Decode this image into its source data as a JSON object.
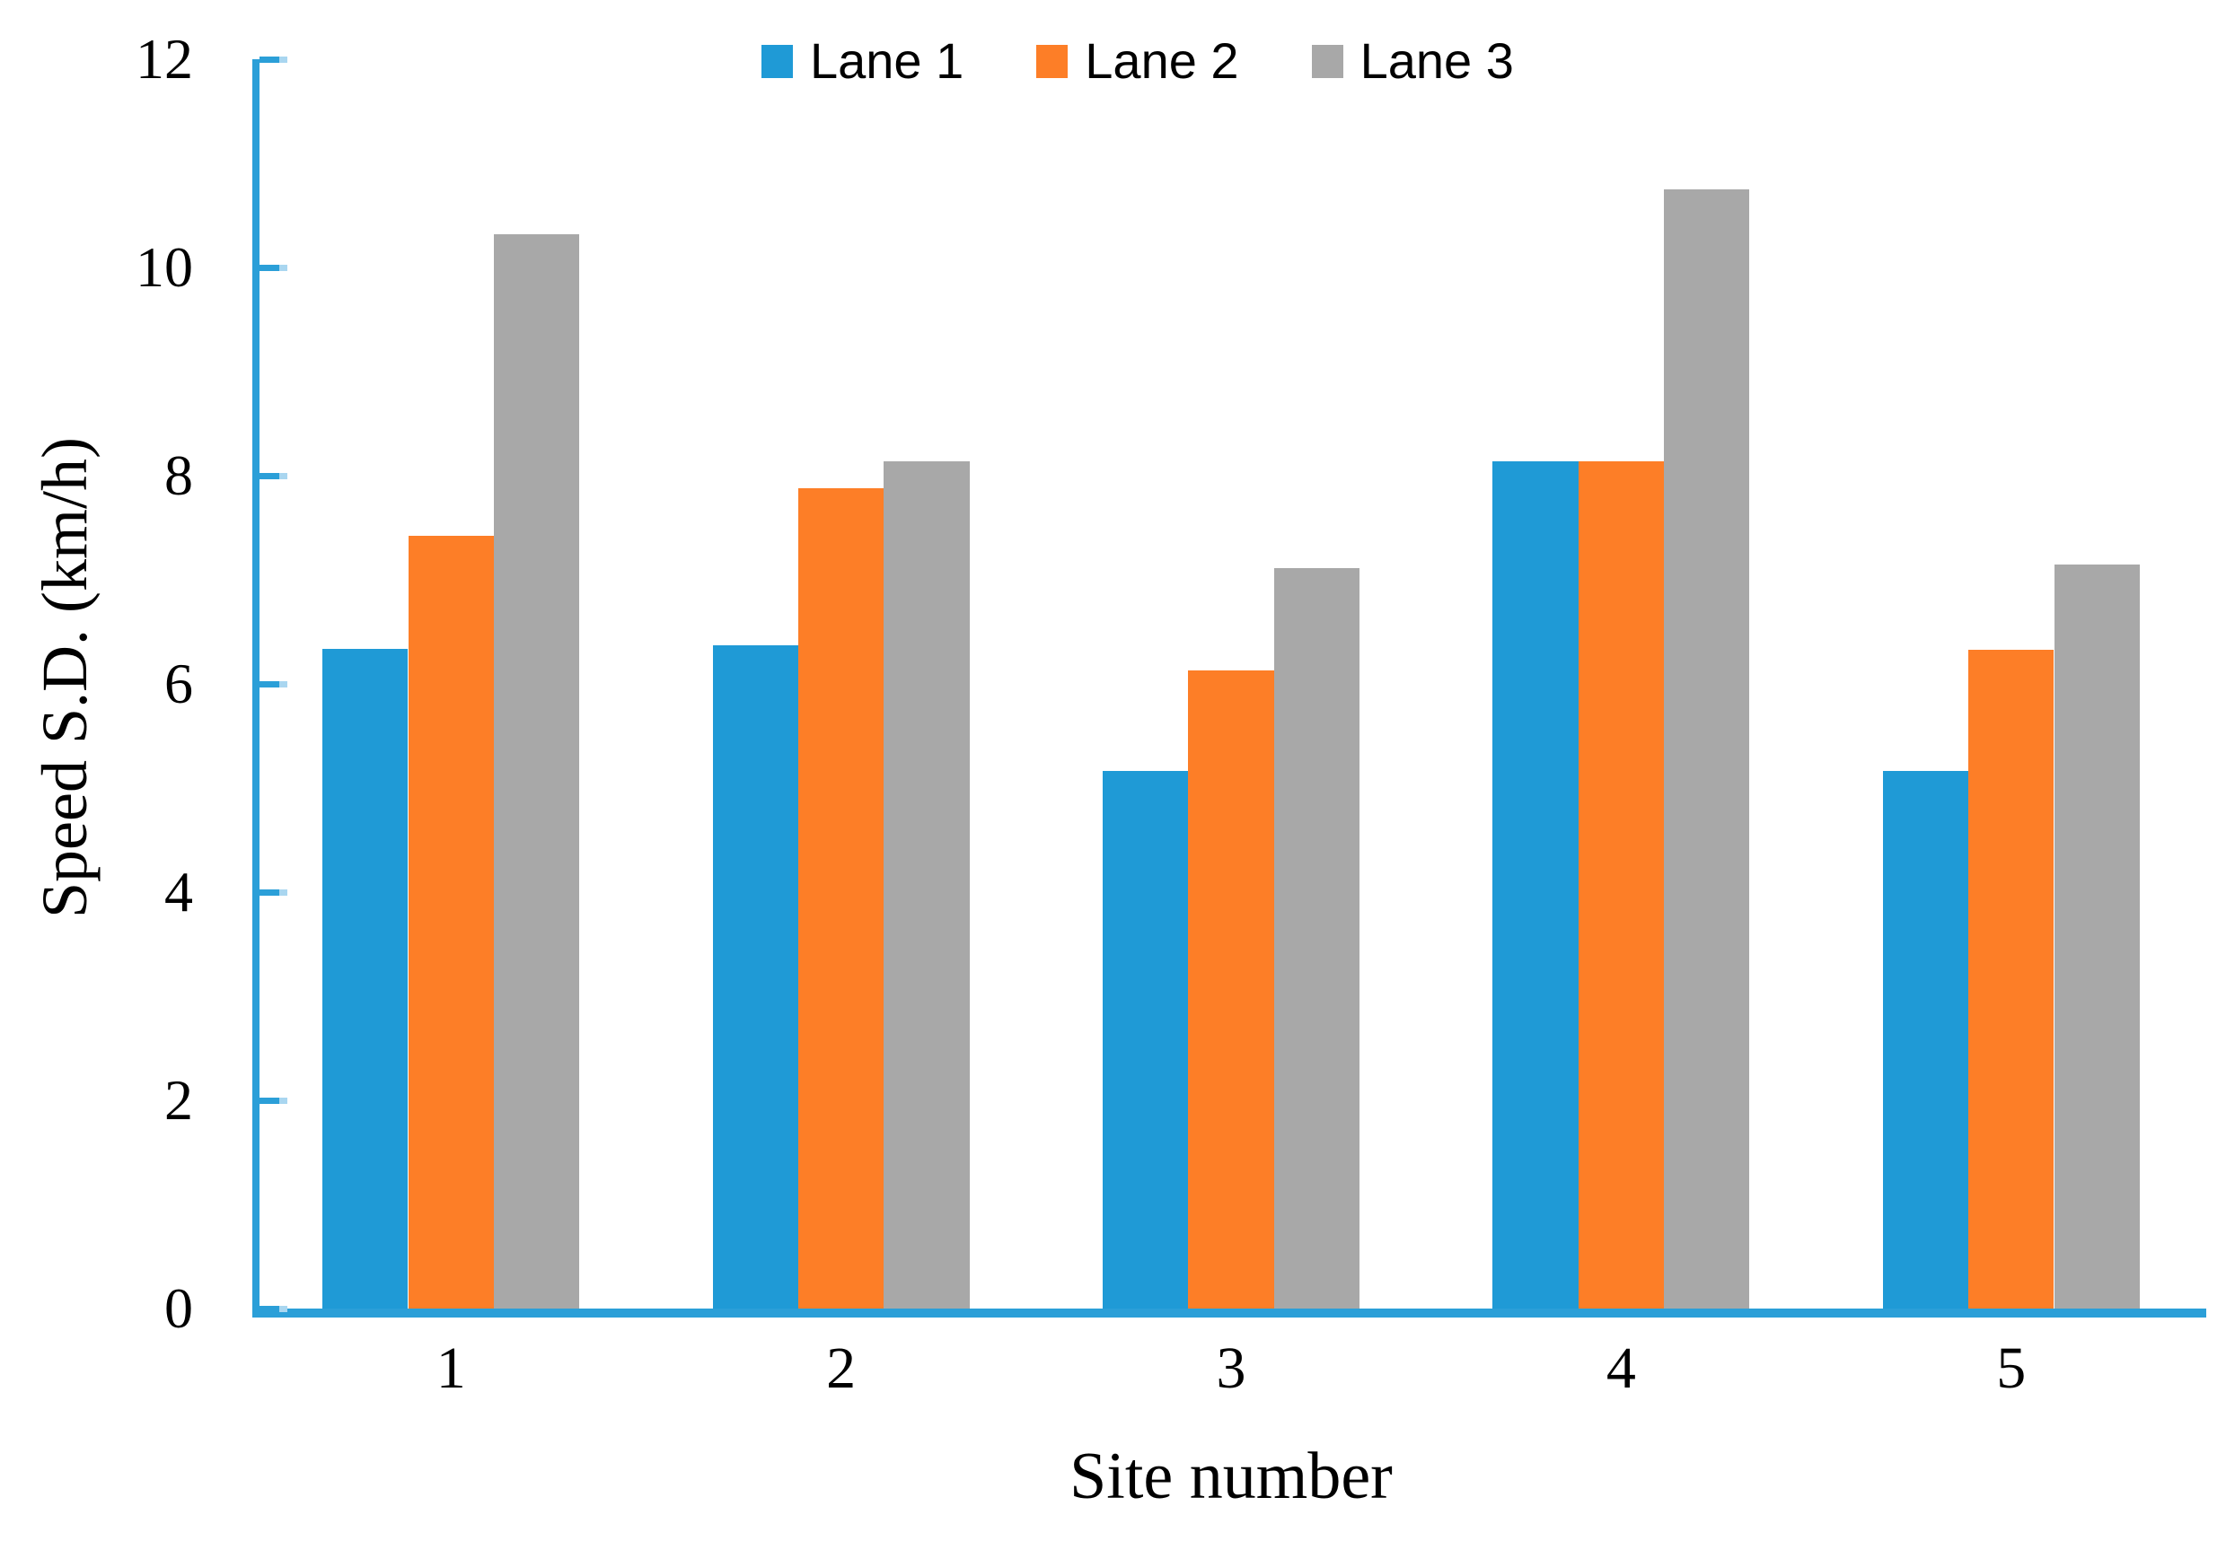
{
  "chart_data": {
    "type": "bar",
    "title": "",
    "xlabel": "Site number",
    "ylabel": "Speed S.D. (km/h)",
    "categories": [
      "1",
      "2",
      "3",
      "4",
      "5"
    ],
    "series": [
      {
        "name": "Lane 1",
        "color": "#1F9AD6",
        "values": [
          6.34,
          6.37,
          5.16,
          8.14,
          5.16
        ]
      },
      {
        "name": "Lane 2",
        "color": "#FD7E27",
        "values": [
          7.42,
          7.88,
          6.13,
          8.14,
          6.33
        ]
      },
      {
        "name": "Lane 3",
        "color": "#A8A8A8",
        "values": [
          10.32,
          8.14,
          7.11,
          10.75,
          7.15
        ]
      }
    ],
    "ylim": [
      0,
      12
    ],
    "ytick_step": 2,
    "y_tick_labels": [
      "0",
      "2",
      "4",
      "6",
      "8",
      "10",
      "12"
    ],
    "grid": false,
    "legend_position": "top-center",
    "axis_color": "#2B9FD8",
    "axis_tick_tip_color": "#A9D6F0",
    "background_color": "#FFFFFF"
  }
}
